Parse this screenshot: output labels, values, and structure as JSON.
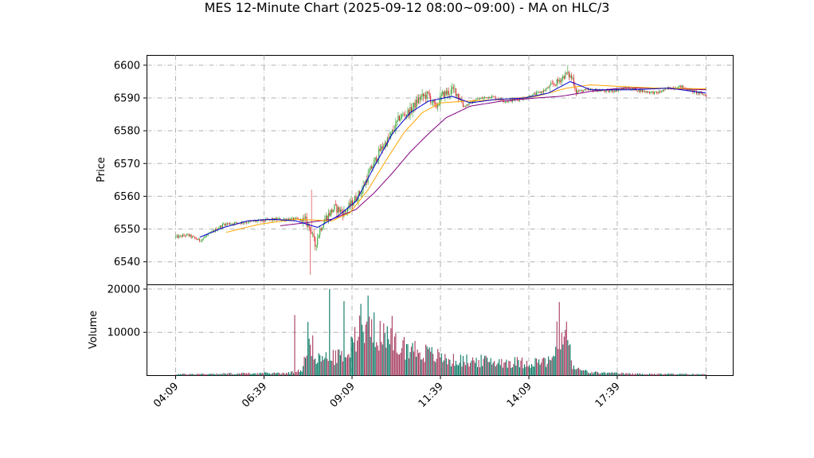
{
  "chart_data": {
    "title": "MES 12-Minute Chart (2025-09-12 08:00~09:00) - MA on HLC/3",
    "type": "candlestick",
    "price_panel": {
      "ylabel": "Price",
      "ylim": [
        6533,
        6603
      ],
      "yticks": [
        6540,
        6550,
        6560,
        6570,
        6580,
        6590,
        6600
      ]
    },
    "volume_panel": {
      "ylabel": "Volume",
      "ylim": [
        0,
        21000
      ],
      "yticks": [
        10000,
        20000
      ]
    },
    "x_ticks": [
      "04:09",
      "06:39",
      "09:09",
      "11:39",
      "14:09",
      "17:39"
    ],
    "grid": true,
    "colors": {
      "up": "#2ca02c",
      "down": "#d62728",
      "ma_fast": "#0000cd",
      "ma_mid": "#ffa500",
      "ma_slow": "#800080",
      "volume_up": "#0b7a66",
      "volume_down": "#a83e62"
    },
    "price_path": [
      {
        "i": 0,
        "p": 6547.5
      },
      {
        "i": 10,
        "p": 6548.2
      },
      {
        "i": 20,
        "p": 6546.5
      },
      {
        "i": 30,
        "p": 6549.0
      },
      {
        "i": 40,
        "p": 6551.5
      },
      {
        "i": 55,
        "p": 6552.0
      },
      {
        "i": 70,
        "p": 6552.5
      },
      {
        "i": 85,
        "p": 6553.0
      },
      {
        "i": 100,
        "p": 6553.0
      },
      {
        "i": 108,
        "p": 6552.5
      },
      {
        "i": 112,
        "p": 6550.0
      },
      {
        "i": 116,
        "p": 6545.0
      },
      {
        "i": 120,
        "p": 6550.0
      },
      {
        "i": 125,
        "p": 6553.5
      },
      {
        "i": 132,
        "p": 6556.5
      },
      {
        "i": 140,
        "p": 6555.0
      },
      {
        "i": 148,
        "p": 6558.5
      },
      {
        "i": 155,
        "p": 6562.0
      },
      {
        "i": 162,
        "p": 6568.0
      },
      {
        "i": 170,
        "p": 6574.0
      },
      {
        "i": 178,
        "p": 6578.0
      },
      {
        "i": 186,
        "p": 6584.0
      },
      {
        "i": 195,
        "p": 6586.0
      },
      {
        "i": 203,
        "p": 6590.0
      },
      {
        "i": 210,
        "p": 6591.0
      },
      {
        "i": 216,
        "p": 6587.0
      },
      {
        "i": 222,
        "p": 6591.0
      },
      {
        "i": 232,
        "p": 6592.5
      },
      {
        "i": 240,
        "p": 6587.5
      },
      {
        "i": 250,
        "p": 6589.5
      },
      {
        "i": 262,
        "p": 6590.5
      },
      {
        "i": 275,
        "p": 6589.0
      },
      {
        "i": 290,
        "p": 6590.0
      },
      {
        "i": 305,
        "p": 6592.0
      },
      {
        "i": 318,
        "p": 6595.0
      },
      {
        "i": 325,
        "p": 6597.5
      },
      {
        "i": 330,
        "p": 6596.0
      },
      {
        "i": 333,
        "p": 6592.0
      },
      {
        "i": 345,
        "p": 6592.5
      },
      {
        "i": 360,
        "p": 6592.0
      },
      {
        "i": 375,
        "p": 6593.0
      },
      {
        "i": 390,
        "p": 6592.0
      },
      {
        "i": 400,
        "p": 6591.5
      },
      {
        "i": 410,
        "p": 6593.0
      },
      {
        "i": 420,
        "p": 6593.5
      },
      {
        "i": 430,
        "p": 6592.0
      },
      {
        "i": 441,
        "p": 6590.8
      }
    ],
    "ma_fast": [
      {
        "i": 20,
        "p": 6547.5
      },
      {
        "i": 40,
        "p": 6550.5
      },
      {
        "i": 60,
        "p": 6552.5
      },
      {
        "i": 80,
        "p": 6553.0
      },
      {
        "i": 100,
        "p": 6552.5
      },
      {
        "i": 118,
        "p": 6550.5
      },
      {
        "i": 135,
        "p": 6554.0
      },
      {
        "i": 150,
        "p": 6558.5
      },
      {
        "i": 165,
        "p": 6569.0
      },
      {
        "i": 180,
        "p": 6579.0
      },
      {
        "i": 195,
        "p": 6585.5
      },
      {
        "i": 210,
        "p": 6589.0
      },
      {
        "i": 230,
        "p": 6590.5
      },
      {
        "i": 245,
        "p": 6588.5
      },
      {
        "i": 265,
        "p": 6589.5
      },
      {
        "i": 290,
        "p": 6590.0
      },
      {
        "i": 310,
        "p": 6591.5
      },
      {
        "i": 328,
        "p": 6595.0
      },
      {
        "i": 345,
        "p": 6592.5
      },
      {
        "i": 380,
        "p": 6592.5
      },
      {
        "i": 410,
        "p": 6593.0
      },
      {
        "i": 441,
        "p": 6591.5
      }
    ],
    "ma_mid": [
      {
        "i": 42,
        "p": 6549.0
      },
      {
        "i": 70,
        "p": 6551.5
      },
      {
        "i": 100,
        "p": 6553.0
      },
      {
        "i": 130,
        "p": 6552.5
      },
      {
        "i": 145,
        "p": 6555.0
      },
      {
        "i": 160,
        "p": 6562.0
      },
      {
        "i": 175,
        "p": 6571.0
      },
      {
        "i": 190,
        "p": 6579.5
      },
      {
        "i": 205,
        "p": 6585.5
      },
      {
        "i": 220,
        "p": 6588.5
      },
      {
        "i": 240,
        "p": 6589.0
      },
      {
        "i": 270,
        "p": 6589.5
      },
      {
        "i": 300,
        "p": 6590.5
      },
      {
        "i": 325,
        "p": 6593.0
      },
      {
        "i": 345,
        "p": 6594.0
      },
      {
        "i": 370,
        "p": 6593.5
      },
      {
        "i": 400,
        "p": 6593.0
      },
      {
        "i": 441,
        "p": 6592.8
      }
    ],
    "ma_slow": [
      {
        "i": 87,
        "p": 6551.0
      },
      {
        "i": 110,
        "p": 6552.0
      },
      {
        "i": 130,
        "p": 6553.0
      },
      {
        "i": 150,
        "p": 6556.0
      },
      {
        "i": 165,
        "p": 6561.0
      },
      {
        "i": 180,
        "p": 6567.0
      },
      {
        "i": 195,
        "p": 6573.5
      },
      {
        "i": 210,
        "p": 6579.0
      },
      {
        "i": 225,
        "p": 6584.0
      },
      {
        "i": 245,
        "p": 6587.5
      },
      {
        "i": 270,
        "p": 6589.0
      },
      {
        "i": 300,
        "p": 6590.0
      },
      {
        "i": 320,
        "p": 6590.5
      },
      {
        "i": 345,
        "p": 6592.0
      },
      {
        "i": 370,
        "p": 6593.0
      },
      {
        "i": 400,
        "p": 6593.0
      },
      {
        "i": 441,
        "p": 6592.5
      }
    ],
    "volume_profile": [
      {
        "i": 0,
        "v": 300
      },
      {
        "i": 95,
        "v": 600
      },
      {
        "i": 105,
        "v": 1500
      },
      {
        "i": 110,
        "v": 9000
      },
      {
        "i": 118,
        "v": 4000
      },
      {
        "i": 130,
        "v": 4000
      },
      {
        "i": 145,
        "v": 5500
      },
      {
        "i": 155,
        "v": 14000
      },
      {
        "i": 165,
        "v": 12000
      },
      {
        "i": 175,
        "v": 8000
      },
      {
        "i": 185,
        "v": 7000
      },
      {
        "i": 200,
        "v": 6000
      },
      {
        "i": 210,
        "v": 5000
      },
      {
        "i": 230,
        "v": 3500
      },
      {
        "i": 260,
        "v": 3300
      },
      {
        "i": 290,
        "v": 3000
      },
      {
        "i": 310,
        "v": 3200
      },
      {
        "i": 318,
        "v": 6000
      },
      {
        "i": 322,
        "v": 9000
      },
      {
        "i": 325,
        "v": 12000
      },
      {
        "i": 327,
        "v": 7000
      },
      {
        "i": 330,
        "v": 1800
      },
      {
        "i": 345,
        "v": 700
      },
      {
        "i": 380,
        "v": 400
      },
      {
        "i": 441,
        "v": 300
      }
    ],
    "volume_spikes": [
      {
        "i": 99,
        "v": 14000
      },
      {
        "i": 128,
        "v": 20000
      },
      {
        "i": 140,
        "v": 17200
      },
      {
        "i": 158,
        "v": 11800
      },
      {
        "i": 180,
        "v": 13800
      },
      {
        "i": 317,
        "v": 12500
      },
      {
        "i": 319,
        "v": 17000
      }
    ]
  }
}
